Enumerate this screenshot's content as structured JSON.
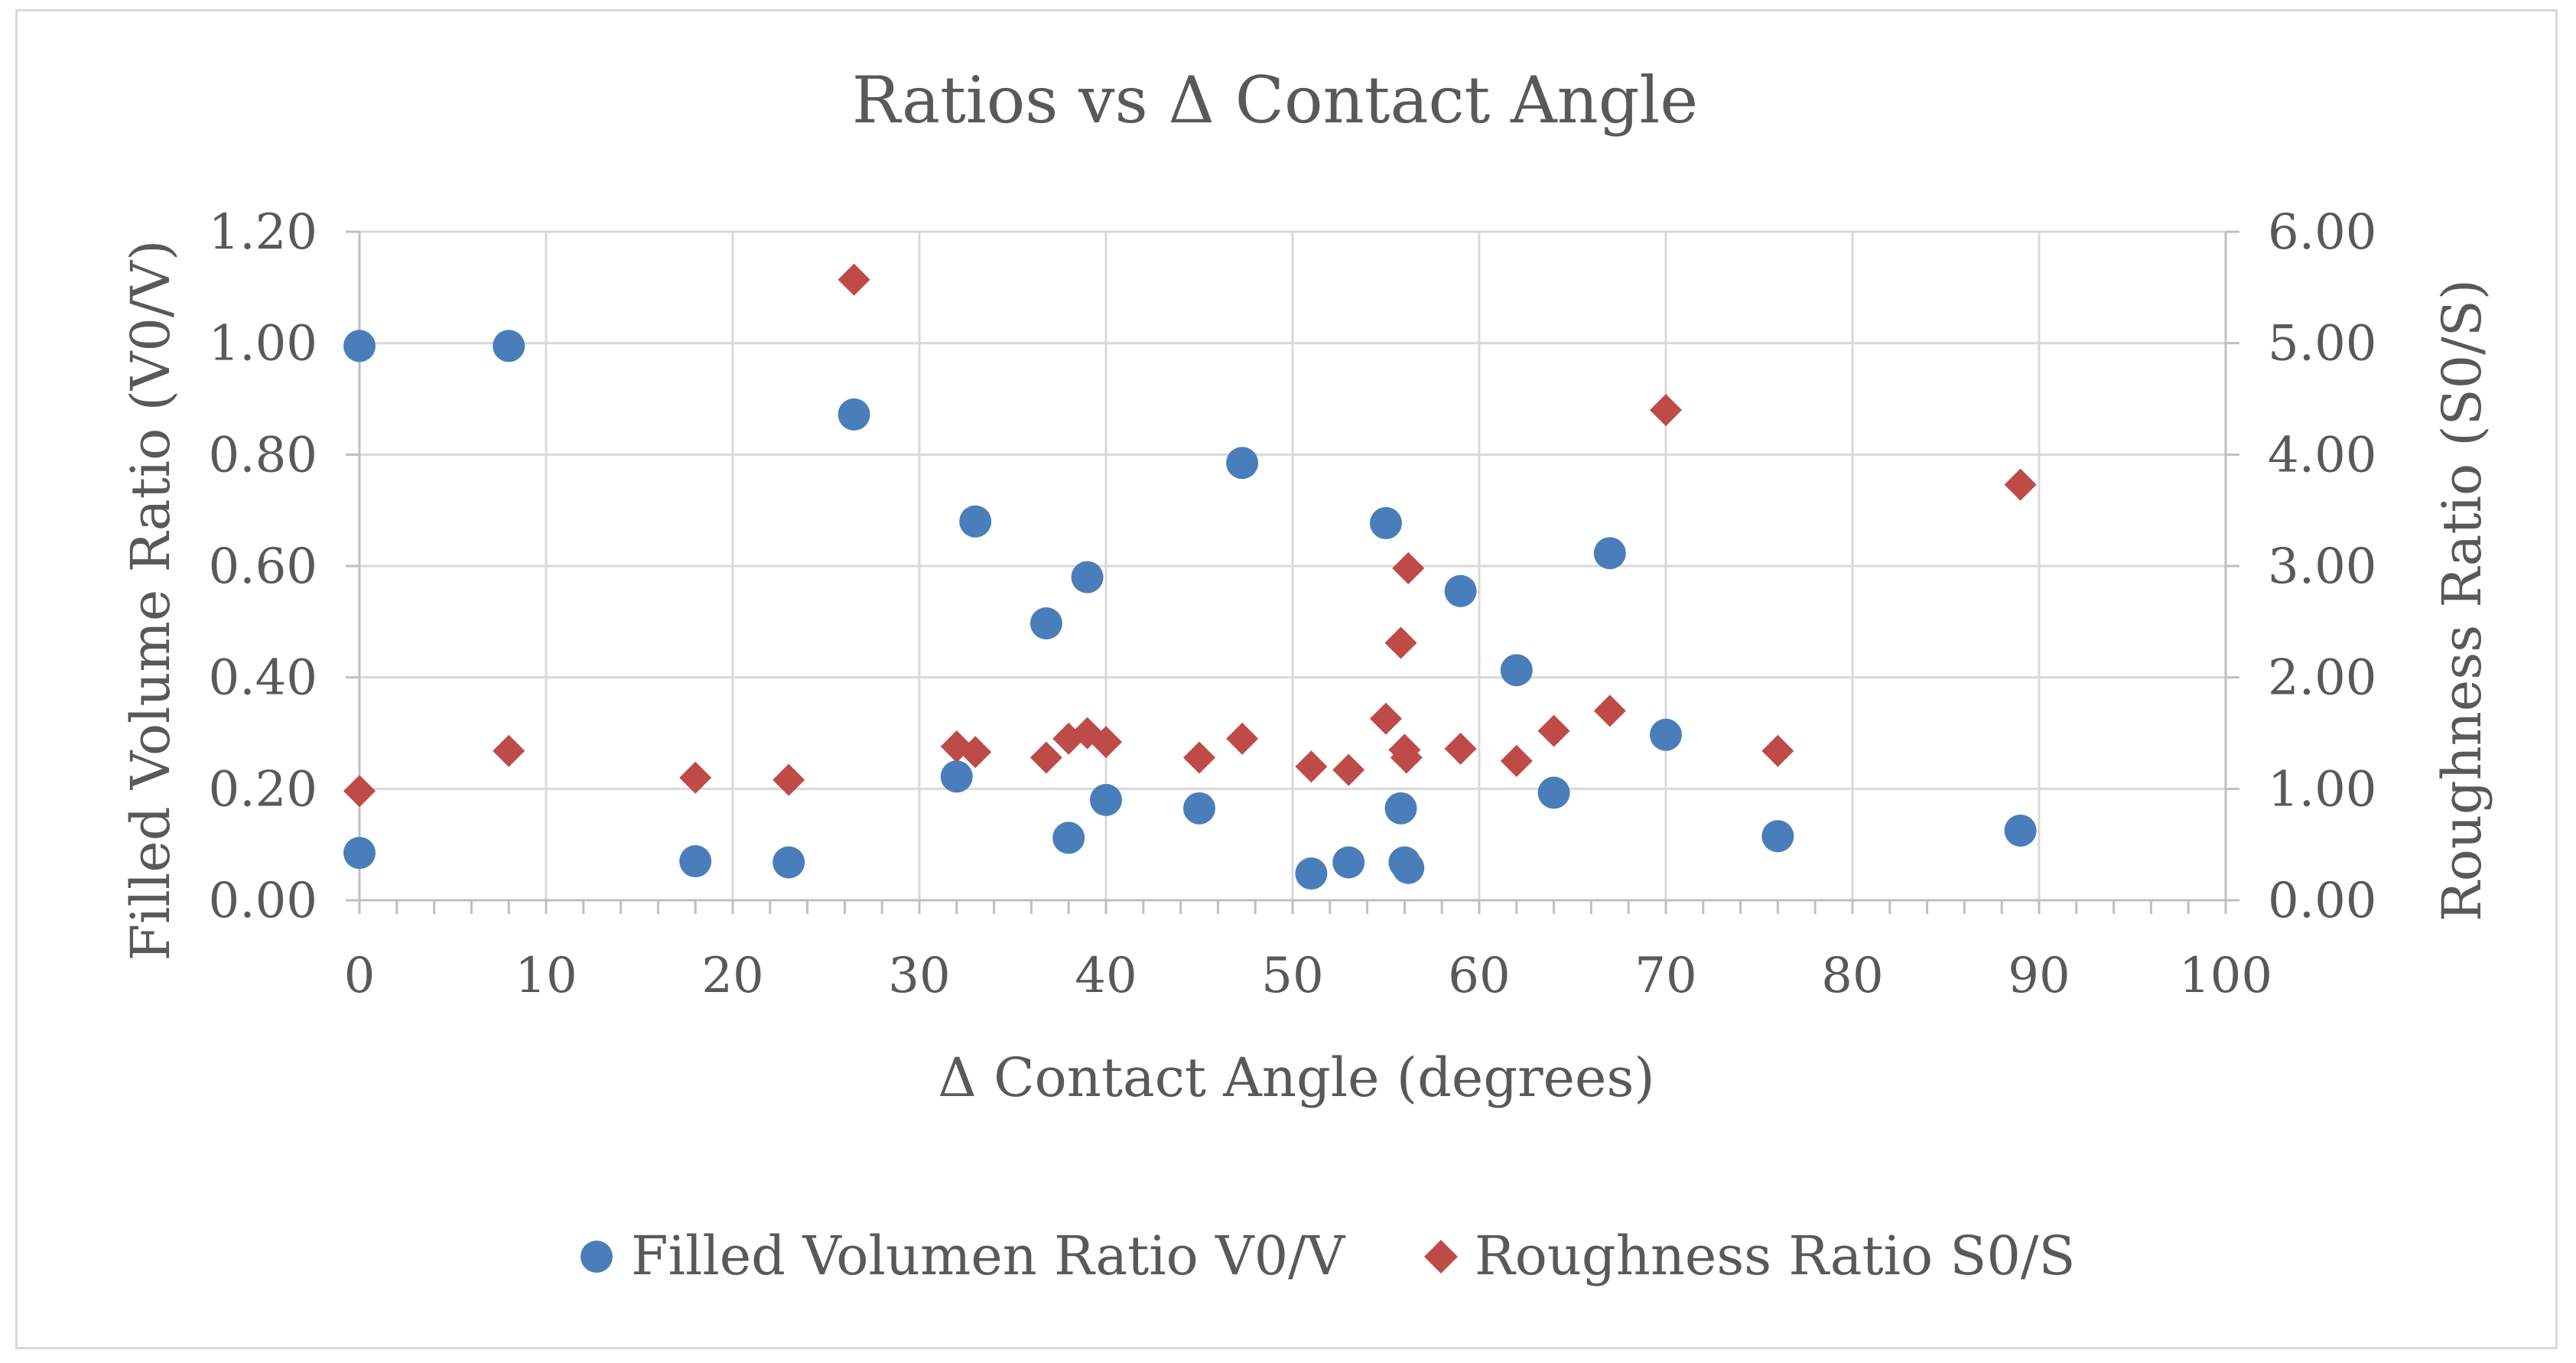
{
  "chart_data": {
    "type": "scatter",
    "title": "Ratios vs Δ Contact Angle",
    "xlabel": "Δ Contact Angle (degrees)",
    "ylabel": "Filled Volume Ratio (V0/V)",
    "y2label": "Roughness Ratio (S0/S)",
    "xlim": [
      0,
      100
    ],
    "ylim": [
      0,
      1.2
    ],
    "y2lim": [
      0,
      6
    ],
    "grid": true,
    "legend_position": "bottom",
    "x_ticks": [
      "0",
      "10",
      "20",
      "30",
      "40",
      "50",
      "60",
      "70",
      "80",
      "90",
      "100"
    ],
    "y_ticks": [
      "0.00",
      "0.20",
      "0.40",
      "0.60",
      "0.80",
      "1.00",
      "1.20"
    ],
    "y2_ticks": [
      "0.00",
      "1.00",
      "2.00",
      "3.00",
      "4.00",
      "5.00",
      "6.00"
    ],
    "series": [
      {
        "name": "Filled Volumen Ratio V0/V",
        "axis": "left",
        "marker": "circle",
        "color": "#4a7ebb",
        "points": [
          [
            0,
            0.085
          ],
          [
            0,
            0.995
          ],
          [
            8,
            0.995
          ],
          [
            18,
            0.07
          ],
          [
            23,
            0.068
          ],
          [
            26.5,
            0.872
          ],
          [
            32,
            0.222
          ],
          [
            33,
            0.68
          ],
          [
            36.8,
            0.497
          ],
          [
            38,
            0.112
          ],
          [
            39,
            0.58
          ],
          [
            40,
            0.18
          ],
          [
            45,
            0.165
          ],
          [
            47.3,
            0.785
          ],
          [
            51,
            0.048
          ],
          [
            53,
            0.068
          ],
          [
            55,
            0.677
          ],
          [
            55.8,
            0.165
          ],
          [
            56,
            0.068
          ],
          [
            56.2,
            0.058
          ],
          [
            59,
            0.555
          ],
          [
            62,
            0.413
          ],
          [
            64,
            0.193
          ],
          [
            67,
            0.623
          ],
          [
            70,
            0.297
          ],
          [
            76,
            0.115
          ],
          [
            89,
            0.125
          ]
        ]
      },
      {
        "name": "Roughness Ratio S0/S",
        "axis": "right",
        "marker": "diamond",
        "color": "#be4b48",
        "points": [
          [
            0,
            0.98
          ],
          [
            8,
            1.34
          ],
          [
            18,
            1.1
          ],
          [
            23,
            1.08
          ],
          [
            26.5,
            5.57
          ],
          [
            32,
            1.38
          ],
          [
            33,
            1.33
          ],
          [
            36.8,
            1.28
          ],
          [
            38,
            1.45
          ],
          [
            39,
            1.5
          ],
          [
            40,
            1.42
          ],
          [
            45,
            1.28
          ],
          [
            47.3,
            1.45
          ],
          [
            51,
            1.2
          ],
          [
            53,
            1.17
          ],
          [
            55,
            1.63
          ],
          [
            55.8,
            2.31
          ],
          [
            56,
            1.35
          ],
          [
            56.1,
            1.28
          ],
          [
            56.2,
            2.98
          ],
          [
            59,
            1.36
          ],
          [
            62,
            1.25
          ],
          [
            64,
            1.52
          ],
          [
            67,
            1.7
          ],
          [
            70,
            4.4
          ],
          [
            76,
            1.34
          ],
          [
            89,
            3.73
          ]
        ]
      }
    ]
  }
}
